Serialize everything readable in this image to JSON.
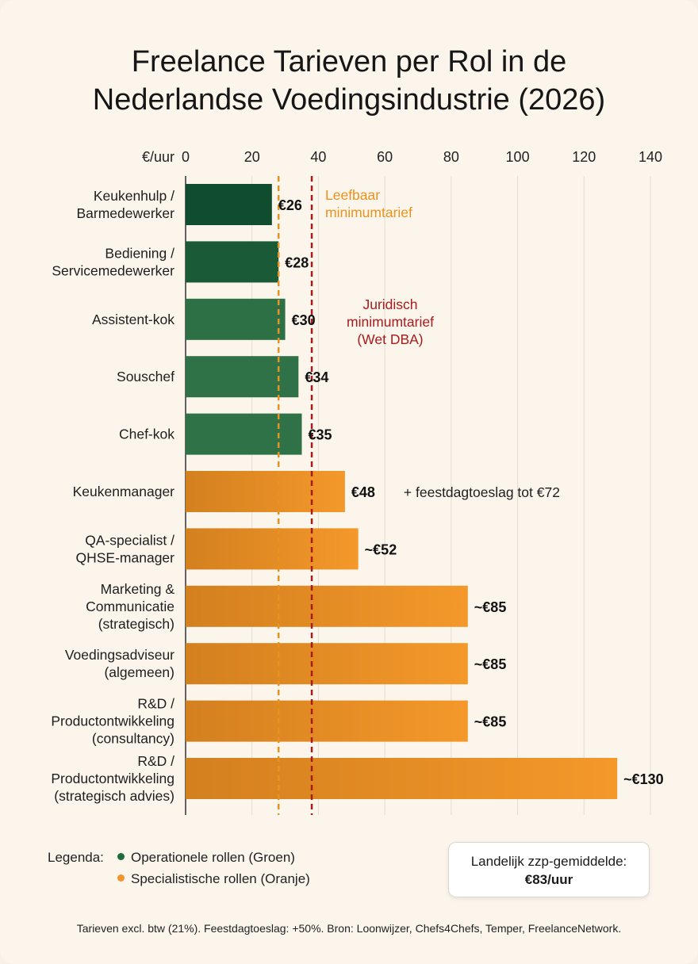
{
  "chart_data": {
    "type": "bar",
    "orientation": "horizontal",
    "title_lines": [
      "Freelance Tarieven per Rol in de",
      "Nederlandse Voedingsindustrie (2026)"
    ],
    "x_unit_label": "€/uur",
    "xlim": [
      0,
      140
    ],
    "x_ticks": [
      0,
      20,
      40,
      60,
      80,
      100,
      120,
      140
    ],
    "grid": true,
    "bars": [
      {
        "label_lines": [
          "Keukenhulp /",
          "Barmedewerker"
        ],
        "value": 26,
        "value_label": "€26",
        "group": "operational",
        "shade": "#0f4d2e"
      },
      {
        "label_lines": [
          "Bediening /",
          "Servicemedewerker"
        ],
        "value": 28,
        "value_label": "€28",
        "group": "operational",
        "shade": "#1b5a37"
      },
      {
        "label_lines": [
          "Assistent-kok"
        ],
        "value": 30,
        "value_label": "€30",
        "group": "operational",
        "shade": "#2e7045"
      },
      {
        "label_lines": [
          "Souschef"
        ],
        "value": 34,
        "value_label": "€34",
        "group": "operational",
        "shade": "#2f7248"
      },
      {
        "label_lines": [
          "Chef-kok"
        ],
        "value": 35,
        "value_label": "€35",
        "group": "operational",
        "shade": "#2f7248"
      },
      {
        "label_lines": [
          "Keukenmanager"
        ],
        "value": 48,
        "value_label": "€48",
        "group": "specialist",
        "note": "+ feestdagtoeslag tot €72"
      },
      {
        "label_lines": [
          "QA-specialist /",
          "QHSE-manager"
        ],
        "value": 52,
        "value_label": "~€52",
        "group": "specialist"
      },
      {
        "label_lines": [
          "Marketing &",
          "Communicatie",
          "(strategisch)"
        ],
        "value": 85,
        "value_label": "~€85",
        "group": "specialist"
      },
      {
        "label_lines": [
          "Voedingsadviseur",
          "(algemeen)"
        ],
        "value": 85,
        "value_label": "~€85",
        "group": "specialist"
      },
      {
        "label_lines": [
          "R&D /",
          "Productontwikkeling",
          "(consultancy)"
        ],
        "value": 85,
        "value_label": "~€85",
        "group": "specialist"
      },
      {
        "label_lines": [
          "R&D /",
          "Productontwikkeling",
          "(strategisch advies)"
        ],
        "value": 130,
        "value_label": "~€130",
        "group": "specialist"
      }
    ],
    "reference_lines": [
      {
        "value": 28,
        "label_lines": [
          "Leefbaar",
          "minimumtarief"
        ],
        "color": "#e8931f"
      },
      {
        "value": 38,
        "label_lines": [
          "Juridisch",
          "minimumtarief",
          "(Wet DBA)"
        ],
        "color": "#a81c1c"
      }
    ],
    "colors": {
      "specialist_start": "#d3801f",
      "specialist_end": "#f4982a",
      "operational_dot": "#1e6b3e",
      "specialist_dot": "#f0962c"
    }
  },
  "legend": {
    "title": "Legenda:",
    "items": [
      {
        "label": "Operationele rollen (Groen)",
        "color": "#1e6b3e"
      },
      {
        "label": "Specialistische rollen (Oranje)",
        "color": "#f0962c"
      }
    ]
  },
  "average_box": {
    "line1": "Landelijk zzp-gemiddelde:",
    "line2": "€83/uur"
  },
  "footnote": "Tarieven excl. btw (21%). Feestdagtoeslag: +50%. Bron: Loonwijzer, Chefs4Chefs, Temper, FreelanceNetwork."
}
